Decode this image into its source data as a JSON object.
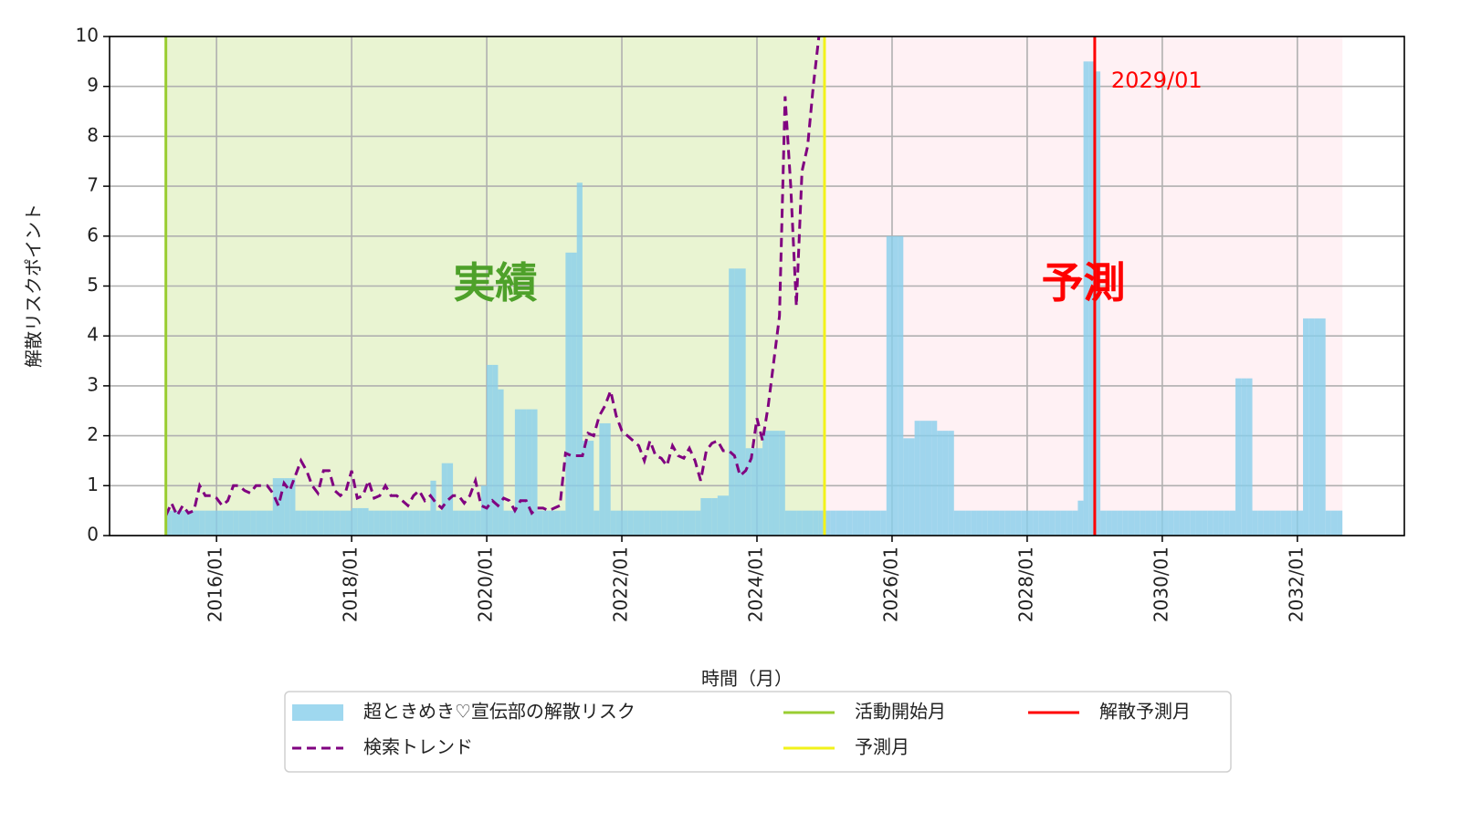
{
  "chart_data": {
    "type": "combo",
    "xlabel": "時間（月）",
    "ylabel": "解散リスクポイント",
    "xlim": [
      "2014/06",
      "2033/08"
    ],
    "xticks": [
      "2016/01",
      "2018/01",
      "2020/01",
      "2022/01",
      "2024/01",
      "2026/01",
      "2028/01",
      "2030/01",
      "2032/01"
    ],
    "ylim": [
      0,
      10
    ],
    "yticks": [
      0,
      1,
      2,
      3,
      4,
      5,
      6,
      7,
      8,
      9,
      10
    ],
    "grid": true,
    "legend": "bottom",
    "spans": [
      {
        "label": "実績",
        "from": "2015/04",
        "to": "2025/01",
        "color": "#9acd32",
        "label_color": "#4ea12a"
      },
      {
        "label": "予測",
        "from": "2025/01",
        "to": "2032/09",
        "color": "#ffc0cb",
        "label_color": "#ff0000"
      }
    ],
    "vlines": [
      {
        "name": "活動開始月",
        "x": "2015/04",
        "color": "#9acd32"
      },
      {
        "name": "予測月",
        "x": "2025/01",
        "color": "#f2f21a"
      },
      {
        "name": "解散予測月",
        "x": "2029/01",
        "color": "#ff0000",
        "annotation": "2029/01"
      }
    ],
    "series": [
      {
        "name": "超ときめき♡宣伝部の解散リスク",
        "type": "bar",
        "color": "#87ceeb",
        "x": [
          "2015/04",
          "2015/05",
          "2015/06",
          "2015/07",
          "2015/08",
          "2015/09",
          "2015/10",
          "2015/11",
          "2015/12",
          "2016/01",
          "2016/02",
          "2016/03",
          "2016/04",
          "2016/05",
          "2016/06",
          "2016/07",
          "2016/08",
          "2016/09",
          "2016/10",
          "2016/11",
          "2016/12",
          "2017/01",
          "2017/02",
          "2017/03",
          "2017/04",
          "2017/05",
          "2017/06",
          "2017/07",
          "2017/08",
          "2017/09",
          "2017/10",
          "2017/11",
          "2017/12",
          "2018/01",
          "2018/02",
          "2018/03",
          "2018/04",
          "2018/05",
          "2018/06",
          "2018/07",
          "2018/08",
          "2018/09",
          "2018/10",
          "2018/11",
          "2018/12",
          "2019/01",
          "2019/02",
          "2019/03",
          "2019/04",
          "2019/05",
          "2019/06",
          "2019/07",
          "2019/08",
          "2019/09",
          "2019/10",
          "2019/11",
          "2019/12",
          "2020/01",
          "2020/02",
          "2020/03",
          "2020/04",
          "2020/05",
          "2020/06",
          "2020/07",
          "2020/08",
          "2020/09",
          "2020/10",
          "2020/11",
          "2020/12",
          "2021/01",
          "2021/02",
          "2021/03",
          "2021/04",
          "2021/05",
          "2021/06",
          "2021/07",
          "2021/08",
          "2021/09",
          "2021/10",
          "2021/11",
          "2021/12",
          "2022/01",
          "2022/02",
          "2022/03",
          "2022/04",
          "2022/05",
          "2022/06",
          "2022/07",
          "2022/08",
          "2022/09",
          "2022/10",
          "2022/11",
          "2022/12",
          "2023/01",
          "2023/02",
          "2023/03",
          "2023/04",
          "2023/05",
          "2023/06",
          "2023/07",
          "2023/08",
          "2023/09",
          "2023/10",
          "2023/11",
          "2023/12",
          "2024/01",
          "2024/02",
          "2024/03",
          "2024/04",
          "2024/05",
          "2024/06",
          "2024/07",
          "2024/08",
          "2024/09",
          "2024/10",
          "2024/11",
          "2024/12",
          "2025/01",
          "2025/02",
          "2025/03",
          "2025/04",
          "2025/05",
          "2025/06",
          "2025/07",
          "2025/08",
          "2025/09",
          "2025/10",
          "2025/11",
          "2025/12",
          "2026/01",
          "2026/02",
          "2026/03",
          "2026/04",
          "2026/05",
          "2026/06",
          "2026/07",
          "2026/08",
          "2026/09",
          "2026/10",
          "2026/11",
          "2026/12",
          "2027/01",
          "2027/02",
          "2027/03",
          "2027/04",
          "2027/05",
          "2027/06",
          "2027/07",
          "2027/08",
          "2027/09",
          "2027/10",
          "2027/11",
          "2027/12",
          "2028/01",
          "2028/02",
          "2028/03",
          "2028/04",
          "2028/05",
          "2028/06",
          "2028/07",
          "2028/08",
          "2028/09",
          "2028/10",
          "2028/11",
          "2028/12",
          "2029/01",
          "2029/02",
          "2029/03",
          "2029/04",
          "2029/05",
          "2029/06",
          "2029/07",
          "2029/08",
          "2029/09",
          "2029/10",
          "2029/11",
          "2029/12",
          "2030/01",
          "2030/02",
          "2030/03",
          "2030/04",
          "2030/05",
          "2030/06",
          "2030/07",
          "2030/08",
          "2030/09",
          "2030/10",
          "2030/11",
          "2030/12",
          "2031/01",
          "2031/02",
          "2031/03",
          "2031/04",
          "2031/05",
          "2031/06",
          "2031/07",
          "2031/08",
          "2031/09",
          "2031/10",
          "2031/11",
          "2031/12",
          "2032/01",
          "2032/02",
          "2032/03",
          "2032/04",
          "2032/05",
          "2032/06",
          "2032/07",
          "2032/08"
        ],
        "values": [
          0.5,
          0.5,
          0.5,
          0.5,
          0.5,
          0.5,
          0.5,
          0.5,
          0.5,
          0.5,
          0.5,
          0.5,
          0.5,
          0.5,
          0.5,
          0.5,
          0.5,
          0.5,
          0.5,
          1.15,
          1.15,
          1.15,
          1.15,
          0.5,
          0.5,
          0.5,
          0.5,
          0.5,
          0.5,
          0.5,
          0.5,
          0.5,
          0.5,
          0.55,
          0.55,
          0.55,
          0.5,
          0.5,
          0.5,
          0.5,
          0.5,
          0.5,
          0.5,
          0.5,
          0.5,
          0.5,
          0.5,
          1.1,
          0.5,
          1.45,
          1.45,
          0.5,
          0.5,
          0.5,
          0.5,
          0.5,
          1.0,
          3.42,
          3.42,
          2.93,
          0.5,
          0.5,
          2.53,
          2.53,
          2.53,
          2.53,
          0.5,
          0.5,
          0.5,
          0.5,
          0.5,
          5.67,
          5.67,
          7.07,
          1.9,
          1.9,
          0.5,
          2.25,
          2.25,
          0.5,
          0.5,
          0.5,
          0.5,
          0.5,
          0.5,
          0.5,
          0.5,
          0.5,
          0.5,
          0.5,
          0.5,
          0.5,
          0.5,
          0.5,
          0.5,
          0.75,
          0.75,
          0.75,
          0.8,
          0.8,
          5.35,
          5.35,
          5.35,
          1.75,
          1.75,
          1.75,
          2.1,
          2.1,
          2.1,
          2.1,
          0.5,
          0.5,
          0.5,
          0.5,
          0.5,
          0.5,
          0.5,
          0.5,
          0.5,
          0.5,
          0.5,
          0.5,
          0.5,
          0.5,
          0.5,
          0.5,
          0.5,
          0.5,
          6.0,
          6.0,
          6.0,
          1.95,
          1.95,
          2.3,
          2.3,
          2.3,
          2.3,
          2.1,
          2.1,
          2.1,
          0.5,
          0.5,
          0.5,
          0.5,
          0.5,
          0.5,
          0.5,
          0.5,
          0.5,
          0.5,
          0.5,
          0.5,
          0.5,
          0.5,
          0.5,
          0.5,
          0.5,
          0.5,
          0.5,
          0.5,
          0.5,
          0.5,
          0.7,
          9.5,
          9.5,
          9.3,
          0.5,
          0.5,
          0.5,
          0.5,
          0.5,
          0.5,
          0.5,
          0.5,
          0.5,
          0.5,
          0.5,
          0.5,
          0.5,
          0.5,
          0.5,
          0.5,
          0.5,
          0.5,
          0.5,
          0.5,
          0.5,
          0.5,
          0.5,
          0.5,
          3.15,
          3.15,
          3.15,
          0.5,
          0.5,
          0.5,
          0.5,
          0.5,
          0.5,
          0.5,
          0.5,
          0.5,
          4.35,
          4.35,
          4.35,
          4.35,
          0.5,
          0.5,
          0.5
        ]
      },
      {
        "name": "検索トレンド",
        "type": "line",
        "color": "#800080",
        "dashed": true,
        "x": [
          "2015/04",
          "2015/05",
          "2015/06",
          "2015/07",
          "2015/08",
          "2015/09",
          "2015/10",
          "2015/11",
          "2015/12",
          "2016/01",
          "2016/02",
          "2016/03",
          "2016/04",
          "2016/05",
          "2016/06",
          "2016/07",
          "2016/08",
          "2016/09",
          "2016/10",
          "2016/11",
          "2016/12",
          "2017/01",
          "2017/02",
          "2017/03",
          "2017/04",
          "2017/05",
          "2017/06",
          "2017/07",
          "2017/08",
          "2017/09",
          "2017/10",
          "2017/11",
          "2017/12",
          "2018/01",
          "2018/02",
          "2018/03",
          "2018/04",
          "2018/05",
          "2018/06",
          "2018/07",
          "2018/08",
          "2018/09",
          "2018/10",
          "2018/11",
          "2018/12",
          "2019/01",
          "2019/02",
          "2019/03",
          "2019/04",
          "2019/05",
          "2019/06",
          "2019/07",
          "2019/08",
          "2019/09",
          "2019/10",
          "2019/11",
          "2019/12",
          "2020/01",
          "2020/02",
          "2020/03",
          "2020/04",
          "2020/05",
          "2020/06",
          "2020/07",
          "2020/08",
          "2020/09",
          "2020/10",
          "2020/11",
          "2020/12",
          "2021/01",
          "2021/02",
          "2021/03",
          "2021/04",
          "2021/05",
          "2021/06",
          "2021/07",
          "2021/08",
          "2021/09",
          "2021/10",
          "2021/11",
          "2021/12",
          "2022/01",
          "2022/02",
          "2022/03",
          "2022/04",
          "2022/05",
          "2022/06",
          "2022/07",
          "2022/08",
          "2022/09",
          "2022/10",
          "2022/11",
          "2022/12",
          "2023/01",
          "2023/02",
          "2023/03",
          "2023/04",
          "2023/05",
          "2023/06",
          "2023/07",
          "2023/08",
          "2023/09",
          "2023/10",
          "2023/11",
          "2023/12",
          "2024/01",
          "2024/02",
          "2024/03",
          "2024/04",
          "2024/05",
          "2024/06",
          "2024/07",
          "2024/08",
          "2024/09",
          "2024/10",
          "2024/11",
          "2024/12"
        ],
        "values": [
          0.4,
          0.65,
          0.4,
          0.6,
          0.45,
          0.5,
          1.0,
          0.8,
          0.8,
          0.75,
          0.6,
          0.7,
          1.0,
          1.0,
          0.9,
          0.85,
          1.0,
          1.0,
          1.0,
          0.85,
          0.6,
          1.05,
          0.9,
          1.2,
          1.5,
          1.3,
          1.0,
          0.85,
          1.3,
          1.3,
          0.9,
          0.8,
          0.9,
          1.3,
          0.75,
          0.8,
          1.1,
          0.75,
          0.8,
          1.0,
          0.8,
          0.8,
          0.7,
          0.6,
          0.8,
          0.9,
          0.7,
          0.8,
          0.65,
          0.55,
          0.7,
          0.8,
          0.8,
          0.65,
          0.8,
          1.1,
          0.6,
          0.55,
          0.7,
          0.6,
          0.75,
          0.7,
          0.5,
          0.7,
          0.7,
          0.45,
          0.55,
          0.55,
          0.5,
          0.55,
          0.6,
          1.65,
          1.6,
          1.6,
          1.6,
          2.05,
          2.0,
          2.4,
          2.6,
          2.9,
          2.4,
          2.1,
          2.0,
          1.9,
          1.8,
          1.5,
          1.9,
          1.6,
          1.55,
          1.4,
          1.8,
          1.6,
          1.55,
          1.75,
          1.5,
          1.1,
          1.7,
          1.85,
          1.9,
          1.7,
          1.7,
          1.6,
          1.2,
          1.3,
          1.55,
          2.35,
          1.9,
          2.6,
          3.5,
          4.4,
          8.8,
          7.0,
          4.6,
          7.3,
          7.8,
          9.0,
          10
        ]
      }
    ]
  }
}
